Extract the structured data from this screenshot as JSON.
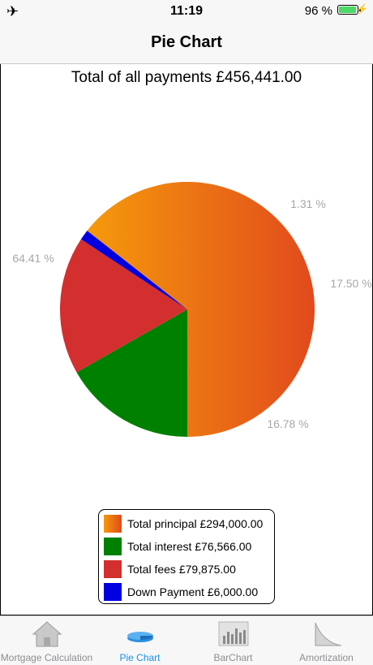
{
  "status": {
    "time": "11:19",
    "battery": "96 %"
  },
  "nav": {
    "title": "Pie Chart"
  },
  "total": "Total of all payments £456,441.00",
  "chart_data": {
    "type": "pie",
    "title": "Total of all payments £456,441.00",
    "slices": [
      {
        "label": "Total principal £294,000.00",
        "value": 294000,
        "percent_label": "64.41 %",
        "color": "#f08a10"
      },
      {
        "label": "Total interest £76,566.00",
        "value": 76566,
        "percent_label": "16.78 %",
        "color": "#008000"
      },
      {
        "label": "Total fees £79,875.00",
        "value": 79875,
        "percent_label": "17.50 %",
        "color": "#d32f2f"
      },
      {
        "label": "Down Payment £6,000.00",
        "value": 6000,
        "percent_label": "1.31 %",
        "color": "#0000e0"
      }
    ],
    "legend_position": "bottom"
  },
  "tabs": [
    {
      "label": "Mortgage Calculation",
      "icon": "house-icon",
      "active": false
    },
    {
      "label": "Pie Chart",
      "icon": "pie-chart-icon",
      "active": true
    },
    {
      "label": "BarChart",
      "icon": "bar-chart-icon",
      "active": false
    },
    {
      "label": "Amortization",
      "icon": "amortization-icon",
      "active": false
    }
  ]
}
